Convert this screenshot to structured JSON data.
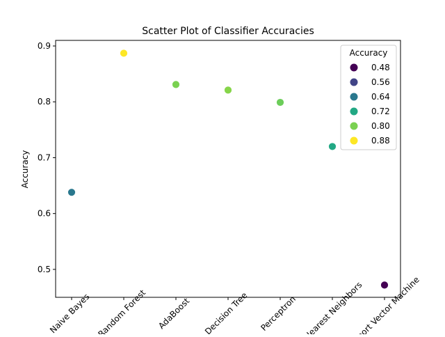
{
  "chart_data": {
    "type": "scatter",
    "title": "Scatter Plot of Classifier Accuracies",
    "xlabel": "",
    "ylabel": "Accuracy",
    "categories": [
      "Naive Bayes",
      "Random Forest",
      "AdaBoost",
      "Decision Tree",
      "Perceptron",
      "K-Nearest Neighbors",
      "Support Vector Machine"
    ],
    "values": [
      0.638,
      0.887,
      0.831,
      0.821,
      0.799,
      0.72,
      0.472
    ],
    "point_colors": [
      "#2a788e",
      "#fde725",
      "#7ad151",
      "#86d549",
      "#6ccd5a",
      "#22a884",
      "#440154"
    ],
    "ylim": [
      0.45,
      0.91
    ],
    "yticks": [
      0.5,
      0.6,
      0.7,
      0.8,
      0.9
    ],
    "ytick_labels": [
      "0.5",
      "0.6",
      "0.7",
      "0.8",
      "0.9"
    ],
    "grid": false,
    "legend": {
      "title": "Accuracy",
      "placement": "top-right",
      "entries": [
        {
          "label": "0.48",
          "color": "#440154"
        },
        {
          "label": "0.56",
          "color": "#414487"
        },
        {
          "label": "0.64",
          "color": "#2a788e"
        },
        {
          "label": "0.72",
          "color": "#22a884"
        },
        {
          "label": "0.80",
          "color": "#7ad151"
        },
        {
          "label": "0.88",
          "color": "#fde725"
        }
      ]
    }
  }
}
